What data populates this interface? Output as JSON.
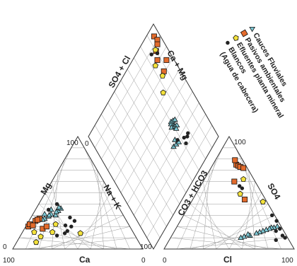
{
  "chart_data": {
    "type": "scatter",
    "subtype": "piper-diagram",
    "legend": {
      "placement": "top-right",
      "orientation": "rotated",
      "entries": [
        {
          "name": "Cauces Fluviales",
          "marker": "triangle",
          "color": "#7ec8d4"
        },
        {
          "name": "Pasivos ambientales",
          "marker": "square",
          "color": "#e36b2c"
        },
        {
          "name": "Efluentes planta mineral",
          "marker": "pentagon",
          "color": "#f4e23c"
        },
        {
          "name": "Blancos",
          "marker": "circle",
          "color": "#222222"
        },
        {
          "name": "(Agua de cabecera)",
          "marker": "none",
          "color": ""
        }
      ]
    },
    "axes": {
      "cation_left": "Mg",
      "cation_bottom": "Ca",
      "cation_right": "Na + K",
      "anion_left": "CO3 + HCO3",
      "anion_bottom": "Cl",
      "anion_right": "SO4",
      "diamond_upper_left": "SO4 + Cl",
      "diamond_upper_right": "Ca + Mg",
      "tick_labels": [
        "100",
        "0",
        "100",
        "0",
        "0",
        "100",
        "0",
        "100",
        "100"
      ]
    },
    "grid": true,
    "cation_series": [
      {
        "name": "Cauces Fluviales",
        "points": [
          [
            52,
            30
          ],
          [
            48,
            34
          ],
          [
            45,
            36
          ],
          [
            50,
            33
          ],
          [
            55,
            31
          ],
          [
            58,
            29
          ],
          [
            62,
            27
          ],
          [
            60,
            31
          ],
          [
            64,
            26
          ],
          [
            46,
            37
          ],
          [
            53,
            35
          ],
          [
            57,
            30
          ]
        ]
      },
      {
        "name": "Pasivos ambientales",
        "points": [
          [
            78,
            20
          ],
          [
            76,
            22
          ],
          [
            70,
            25
          ],
          [
            66,
            27
          ],
          [
            68,
            26
          ],
          [
            74,
            21
          ],
          [
            68,
            18
          ],
          [
            64,
            20
          ]
        ]
      },
      {
        "name": "Efluentes planta mineral",
        "points": [
          [
            76,
            15
          ],
          [
            73,
            11
          ],
          [
            62,
            15
          ],
          [
            56,
            22
          ],
          [
            41,
            14
          ],
          [
            79,
            6
          ]
        ]
      },
      {
        "name": "Blancos",
        "points": [
          [
            49,
            21
          ],
          [
            53,
            14
          ],
          [
            40,
            25
          ],
          [
            42,
            28
          ],
          [
            45,
            20
          ],
          [
            46,
            40
          ],
          [
            55,
            35
          ],
          [
            60,
            12
          ],
          [
            50,
            16
          ]
        ]
      }
    ],
    "anion_series": [
      {
        "name": "Cauces Fluviales",
        "points": [
          [
            77,
            20
          ],
          [
            75,
            19
          ],
          [
            73,
            19
          ],
          [
            72,
            18
          ],
          [
            70,
            17
          ],
          [
            68,
            16
          ],
          [
            66,
            15
          ],
          [
            64,
            14
          ],
          [
            60,
            12
          ],
          [
            58,
            13
          ],
          [
            56,
            11
          ],
          [
            54,
            10
          ]
        ]
      },
      {
        "name": "Pasivos ambientales",
        "points": [
          [
            18,
            75
          ],
          [
            20,
            74
          ],
          [
            22,
            73
          ],
          [
            25,
            72
          ],
          [
            15,
            79
          ],
          [
            40,
            44
          ],
          [
            24,
            60
          ]
        ]
      },
      {
        "name": "Efluentes planta mineral",
        "points": [
          [
            30,
            62
          ],
          [
            55,
            42
          ],
          [
            34,
            49
          ]
        ]
      },
      {
        "name": "Blancos",
        "points": [
          [
            33,
            54
          ],
          [
            30,
            56
          ],
          [
            68,
            30
          ],
          [
            74,
            25
          ],
          [
            80,
            18
          ],
          [
            85,
            12
          ],
          [
            88,
            10
          ],
          [
            78,
            16
          ],
          [
            82,
            8
          ]
        ]
      }
    ],
    "diamond_series": [
      {
        "name": "Cauces Fluviales",
        "points": [
          [
            40,
            71
          ],
          [
            41,
            70
          ],
          [
            42,
            69
          ],
          [
            40,
            68
          ],
          [
            43,
            70
          ],
          [
            38,
            71
          ],
          [
            42,
            72
          ],
          [
            41,
            74
          ],
          [
            37,
            73
          ],
          [
            36,
            71
          ],
          [
            32,
            65
          ],
          [
            30,
            61
          ],
          [
            29,
            64
          ],
          [
            28,
            67
          ]
        ]
      },
      {
        "name": "Pasivos ambientales",
        "points": [
          [
            94,
            95
          ],
          [
            90,
            96
          ],
          [
            88,
            94
          ],
          [
            86,
            90
          ],
          [
            81,
            87
          ],
          [
            74,
            94
          ],
          [
            71,
            87
          ]
        ]
      },
      {
        "name": "Efluentes planta mineral",
        "points": [
          [
            87,
            90
          ],
          [
            80,
            83
          ],
          [
            62,
            77
          ],
          [
            70,
            84
          ]
        ]
      },
      {
        "name": "Blancos",
        "points": [
          [
            88,
            85
          ],
          [
            84,
            90
          ],
          [
            25,
            78
          ],
          [
            22,
            72
          ],
          [
            24,
            76
          ],
          [
            26,
            73
          ],
          [
            30,
            67
          ]
        ]
      }
    ]
  }
}
